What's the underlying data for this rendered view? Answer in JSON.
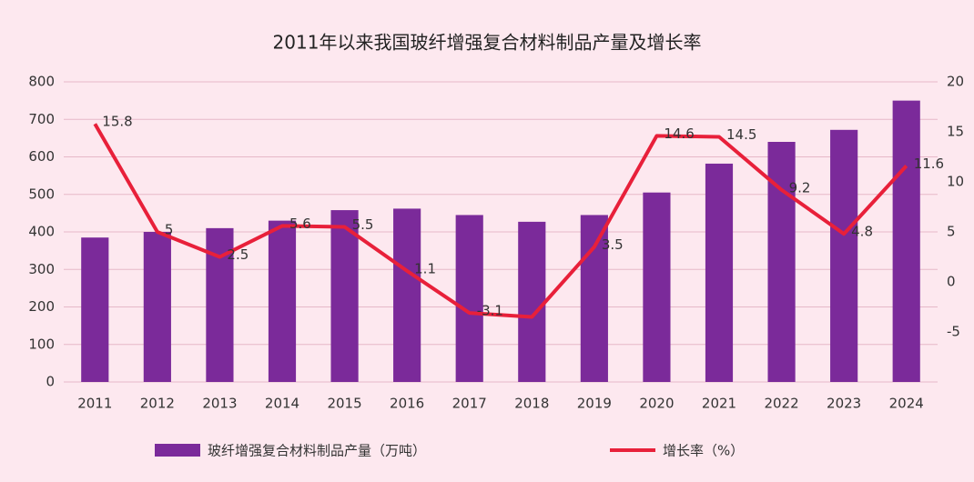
{
  "chart_data": {
    "type": "bar_line",
    "title": "2011年以来我国玻纤增强复合材料制品产量及增长率",
    "categories": [
      "2011",
      "2012",
      "2013",
      "2014",
      "2015",
      "2016",
      "2017",
      "2018",
      "2019",
      "2020",
      "2021",
      "2022",
      "2023",
      "2024"
    ],
    "series": [
      {
        "name": "玻纤增强复合材料制品产量（万吨）",
        "type": "bar",
        "color": "#7b2a9a",
        "values": [
          385,
          400,
          410,
          430,
          458,
          462,
          445,
          427,
          445,
          505,
          582,
          640,
          672,
          750
        ]
      },
      {
        "name": "增长率（%）",
        "type": "line",
        "axis": "y2",
        "color": "#e8203a",
        "values": [
          15.8,
          5,
          2.5,
          5.6,
          5.5,
          1.1,
          -3.1,
          -3.5,
          3.5,
          14.6,
          14.5,
          9.2,
          4.8,
          11.6
        ],
        "value_labels": [
          "15.8",
          "5",
          "2.5",
          "5.6",
          "5.5",
          "1.1",
          "-3.1",
          null,
          "3.5",
          "14.6",
          "14.5",
          "9.2",
          "4.8",
          "11.6"
        ]
      }
    ],
    "ylim": [
      0,
      800
    ],
    "yticks": [
      0,
      100,
      200,
      300,
      400,
      500,
      600,
      700,
      800
    ],
    "y2lim": [
      -10,
      20
    ],
    "y2ticks": [
      -5,
      0,
      5,
      10,
      15,
      20
    ],
    "grid": true
  }
}
